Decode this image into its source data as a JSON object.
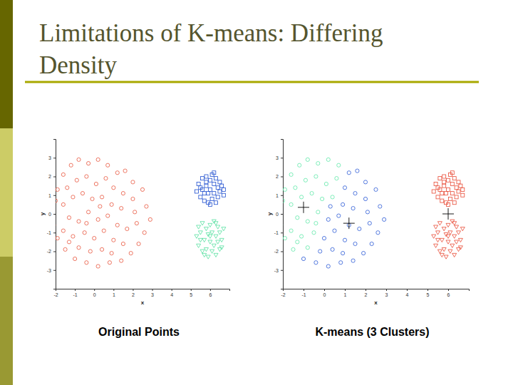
{
  "title": "Limitations of K-means: Differing Density",
  "chart_data": [
    {
      "type": "scatter",
      "title": "Original Points",
      "xlabel": "x",
      "ylabel": "y",
      "xlim": [
        -2,
        7
      ],
      "ylim": [
        -4,
        4
      ],
      "xticks": [
        -2,
        -1,
        0,
        1,
        2,
        3,
        4,
        5,
        6
      ],
      "yticks": [
        -3,
        -2,
        -1,
        0,
        1,
        2,
        3
      ],
      "series": [
        {
          "color": "#e8553e",
          "marker": "circle",
          "x": [
            -1.9,
            -1.6,
            -1.2,
            -0.8,
            -0.3,
            0.2,
            0.7,
            1.2,
            1.6,
            2.0,
            2.5,
            2.7,
            2.9,
            2.6,
            2.3,
            1.9,
            1.4,
            0.8,
            0.2,
            -0.4,
            -1.0,
            -1.5,
            -1.9,
            -2.1,
            -2.2,
            -2.0,
            -1.4,
            -0.9,
            -0.4,
            0.1,
            0.6,
            1.0,
            1.5,
            2.0,
            -1.6,
            -1.1,
            -0.6,
            -0.1,
            0.4,
            0.9,
            1.4,
            2.1,
            -1.3,
            -0.8,
            -0.3,
            0.2,
            0.7,
            1.2,
            1.7,
            2.2,
            -1.6,
            -1.1,
            -0.5,
            0.0,
            0.5,
            1.0,
            1.5,
            -0.8,
            -0.2,
            0.4,
            0.9,
            -1.3,
            -0.4,
            0.3
          ],
          "values": [
            1.3,
            2.1,
            2.6,
            2.9,
            2.7,
            2.9,
            2.6,
            2.2,
            2.3,
            1.7,
            1.3,
            0.4,
            -0.3,
            -1.0,
            -1.6,
            -2.1,
            -2.5,
            -2.6,
            -2.8,
            -2.6,
            -2.4,
            -1.9,
            -1.3,
            -0.6,
            0.2,
            0.7,
            1.4,
            1.8,
            2.0,
            1.6,
            1.9,
            1.4,
            1.1,
            0.8,
            0.5,
            0.9,
            1.1,
            0.8,
            0.9,
            0.5,
            0.3,
            0.1,
            -0.2,
            -0.4,
            0.1,
            -0.3,
            -0.1,
            -0.6,
            -0.8,
            -0.5,
            -0.9,
            -1.2,
            -1.0,
            -1.3,
            -0.9,
            -1.4,
            -1.6,
            -1.8,
            -2.0,
            -1.9,
            -2.1,
            -1.5,
            -0.5,
            0.4
          ]
        },
        {
          "color": "#1f4fcf",
          "marker": "square",
          "x": [
            5.3,
            5.4,
            5.5,
            5.6,
            5.6,
            5.7,
            5.8,
            5.8,
            5.9,
            5.9,
            6.0,
            6.0,
            6.1,
            6.1,
            6.2,
            6.2,
            6.3,
            6.3,
            6.4,
            6.4,
            6.5,
            6.5,
            6.6,
            6.7,
            6.7,
            5.5,
            5.7,
            6.0,
            6.2,
            5.8
          ],
          "values": [
            1.2,
            1.6,
            0.9,
            1.9,
            1.3,
            0.7,
            2.0,
            1.5,
            1.1,
            0.6,
            1.8,
            1.3,
            2.1,
            0.8,
            1.6,
            1.1,
            1.9,
            0.6,
            1.4,
            0.9,
            1.7,
            1.2,
            1.5,
            1.0,
            1.3,
            1.4,
            1.1,
            0.5,
            2.2,
            1.7
          ]
        },
        {
          "color": "#55e0a0",
          "marker": "triangle-down",
          "x": [
            5.3,
            5.4,
            5.4,
            5.5,
            5.6,
            5.6,
            5.7,
            5.8,
            5.8,
            5.9,
            5.9,
            6.0,
            6.0,
            6.1,
            6.1,
            6.2,
            6.2,
            6.3,
            6.3,
            6.4,
            6.4,
            6.5,
            6.5,
            6.6,
            6.7,
            5.5,
            5.7,
            6.0,
            6.3,
            6.6
          ],
          "values": [
            -1.2,
            -0.7,
            -1.7,
            -1.0,
            -2.0,
            -0.5,
            -1.4,
            -0.8,
            -1.9,
            -1.1,
            -2.3,
            -0.6,
            -1.5,
            -2.0,
            -1.0,
            -0.4,
            -1.7,
            -1.2,
            -2.2,
            -0.7,
            -1.5,
            -1.9,
            -1.0,
            -1.4,
            -0.8,
            -1.4,
            -2.2,
            -1.2,
            -0.5,
            -1.8
          ]
        }
      ]
    },
    {
      "type": "scatter",
      "title": "K-means (3 Clusters)",
      "xlabel": "x",
      "ylabel": "y",
      "xlim": [
        -2,
        7
      ],
      "ylim": [
        -4,
        4
      ],
      "xticks": [
        -2,
        -1,
        0,
        1,
        2,
        3,
        4,
        5,
        6
      ],
      "yticks": [
        -3,
        -2,
        -1,
        0,
        1,
        2,
        3
      ],
      "series": [
        {
          "color": "#5fe8a8",
          "marker": "circle",
          "x": [
            -1.9,
            -1.6,
            -1.2,
            -0.8,
            -0.3,
            0.2,
            0.7,
            -1.5,
            -1.9,
            -2.1,
            -2.2,
            -2.0,
            -1.4,
            -0.9,
            -0.4,
            0.1,
            0.6,
            -1.6,
            -1.1,
            -0.6,
            -0.1,
            0.4,
            -1.3,
            -0.8,
            -0.3,
            -1.6,
            -1.1,
            -0.5,
            -0.8,
            -1.3,
            -0.4
          ],
          "values": [
            1.3,
            2.1,
            2.6,
            2.9,
            2.7,
            2.9,
            2.6,
            -1.9,
            -1.3,
            -0.6,
            0.2,
            0.7,
            1.4,
            1.8,
            2.0,
            1.6,
            1.9,
            0.5,
            0.9,
            1.1,
            0.8,
            0.9,
            -0.2,
            -0.4,
            0.1,
            -0.9,
            -1.2,
            -1.0,
            -1.8,
            -1.5,
            -0.5
          ]
        },
        {
          "color": "#2c5bd6",
          "marker": "circle",
          "x": [
            1.2,
            1.6,
            2.0,
            2.5,
            2.7,
            2.9,
            2.6,
            2.3,
            1.9,
            1.4,
            0.8,
            0.2,
            -0.4,
            -1.0,
            1.0,
            1.5,
            2.0,
            0.9,
            1.4,
            2.1,
            0.2,
            0.7,
            1.2,
            1.7,
            2.2,
            0.0,
            0.5,
            1.0,
            1.5,
            -0.2,
            0.4,
            0.9,
            0.3
          ],
          "values": [
            2.2,
            2.3,
            1.7,
            1.3,
            0.4,
            -0.3,
            -1.0,
            -1.6,
            -2.1,
            -2.5,
            -2.6,
            -2.8,
            -2.6,
            -2.4,
            1.4,
            1.1,
            0.8,
            0.5,
            0.3,
            0.1,
            -0.3,
            -0.1,
            -0.6,
            -0.8,
            -0.5,
            -1.3,
            -0.9,
            -1.4,
            -1.6,
            -2.0,
            -1.9,
            -2.1,
            0.4
          ]
        },
        {
          "color": "#e84a35",
          "marker": "square",
          "x": [
            5.3,
            5.4,
            5.5,
            5.6,
            5.6,
            5.7,
            5.8,
            5.8,
            5.9,
            5.9,
            6.0,
            6.0,
            6.1,
            6.1,
            6.2,
            6.2,
            6.3,
            6.3,
            6.4,
            6.4,
            6.5,
            6.5,
            6.6,
            6.7,
            6.7,
            5.5,
            5.7,
            6.0,
            6.2,
            5.8
          ],
          "values": [
            1.2,
            1.6,
            0.9,
            1.9,
            1.3,
            0.7,
            2.0,
            1.5,
            1.1,
            0.6,
            1.8,
            1.3,
            2.1,
            0.8,
            1.6,
            1.1,
            1.9,
            0.6,
            1.4,
            0.9,
            1.7,
            1.2,
            1.5,
            1.0,
            1.3,
            1.4,
            1.1,
            0.5,
            2.2,
            1.7
          ]
        },
        {
          "color": "#e84a35",
          "marker": "triangle-down",
          "x": [
            5.3,
            5.4,
            5.4,
            5.5,
            5.6,
            5.6,
            5.7,
            5.8,
            5.8,
            5.9,
            5.9,
            6.0,
            6.0,
            6.1,
            6.1,
            6.2,
            6.2,
            6.3,
            6.3,
            6.4,
            6.4,
            6.5,
            6.5,
            6.6,
            6.7,
            5.5,
            5.7,
            6.0,
            6.3,
            6.6
          ],
          "values": [
            -1.2,
            -0.7,
            -1.7,
            -1.0,
            -2.0,
            -0.5,
            -1.4,
            -0.8,
            -1.9,
            -1.1,
            -2.3,
            -0.6,
            -1.5,
            -2.0,
            -1.0,
            -0.4,
            -1.7,
            -1.2,
            -2.2,
            -0.7,
            -1.5,
            -1.9,
            -1.0,
            -1.4,
            -0.8,
            -1.4,
            -2.2,
            -1.2,
            -0.5,
            -1.8
          ]
        },
        {
          "color": "#000000",
          "marker": "plus",
          "x": [
            -1.0,
            1.2,
            6.0
          ],
          "values": [
            0.35,
            -0.5,
            0.0
          ]
        }
      ]
    }
  ]
}
